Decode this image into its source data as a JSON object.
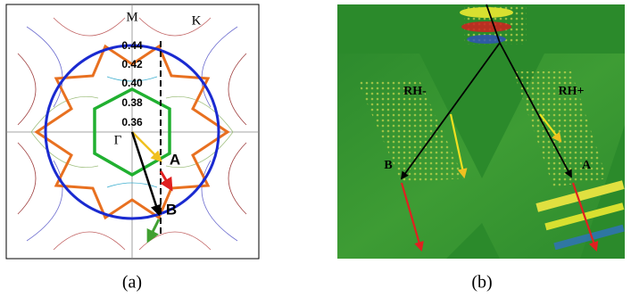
{
  "panel_a": {
    "symmetry_points": [
      "M",
      "K",
      "Γ"
    ],
    "contour_values": [
      "0.44",
      "0.42",
      "0.40",
      "0.38",
      "0.36"
    ],
    "points": [
      "A",
      "B"
    ],
    "caption": "(a)"
  },
  "panel_b": {
    "beams": [
      "RH-",
      "RH+"
    ],
    "points": [
      "B",
      "A"
    ],
    "caption": "(b)"
  }
}
